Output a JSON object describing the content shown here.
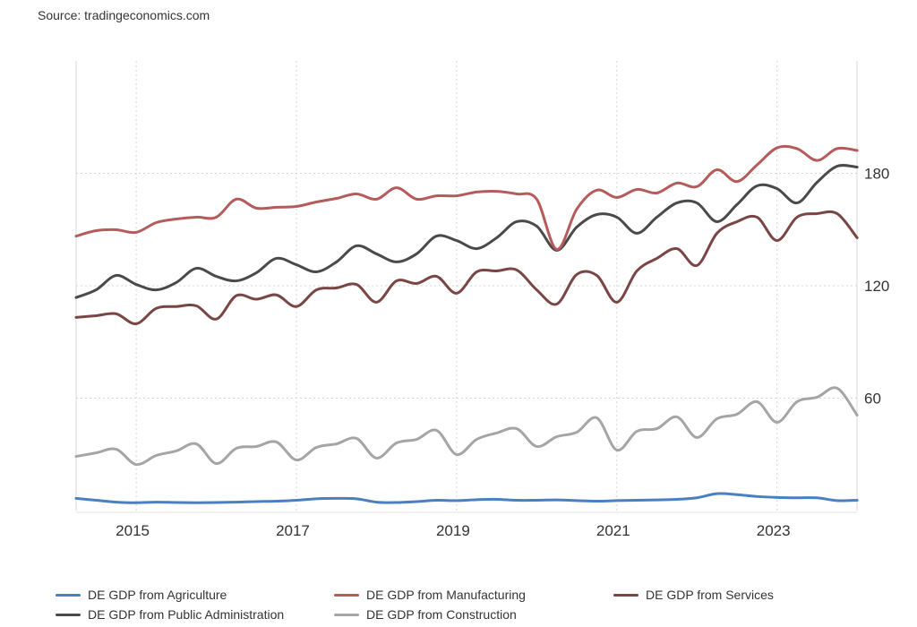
{
  "source": "Source: tradingeconomics.com",
  "chart_data": {
    "type": "line",
    "title": "",
    "xlabel": "",
    "ylabel": "",
    "ylim": [
      0,
      240
    ],
    "y_ticks": [
      "60",
      "120",
      "180"
    ],
    "y_tick_values": [
      60,
      120,
      180
    ],
    "y_axis_side": "right",
    "x_ticks": [
      "2015",
      "2017",
      "2019",
      "2021",
      "2023"
    ],
    "grid": true,
    "legend_position": "bottom",
    "x": [
      "2014-04",
      "2014-07",
      "2014-10",
      "2015-01",
      "2015-04",
      "2015-07",
      "2015-10",
      "2016-01",
      "2016-04",
      "2016-07",
      "2016-10",
      "2017-01",
      "2017-04",
      "2017-07",
      "2017-10",
      "2018-01",
      "2018-04",
      "2018-07",
      "2018-10",
      "2019-01",
      "2019-04",
      "2019-07",
      "2019-10",
      "2020-01",
      "2020-04",
      "2020-07",
      "2020-10",
      "2021-01",
      "2021-04",
      "2021-07",
      "2021-10",
      "2022-01",
      "2022-04",
      "2022-07",
      "2022-10",
      "2023-01",
      "2023-04",
      "2023-07",
      "2023-10",
      "2024-01"
    ],
    "series": [
      {
        "name": "DE GDP from Agriculture",
        "color": "#4a7fc1",
        "values": [
          6.5,
          5.5,
          4.5,
          4.2,
          4.5,
          4.3,
          4.2,
          4.3,
          4.5,
          4.8,
          5.0,
          5.5,
          6.3,
          6.5,
          6.3,
          4.5,
          4.3,
          4.8,
          5.5,
          5.3,
          5.8,
          6.0,
          5.5,
          5.5,
          5.7,
          5.3,
          5.0,
          5.3,
          5.5,
          5.7,
          6.0,
          6.8,
          9.0,
          8.5,
          7.5,
          7.0,
          6.8,
          6.8,
          5.3,
          5.5
        ]
      },
      {
        "name": "DE GDP from Construction",
        "color": "#a5a5a5",
        "values": [
          28.9,
          30.8,
          32.7,
          24.6,
          29.4,
          31.8,
          35.6,
          25.1,
          33.2,
          34.2,
          36.6,
          27.0,
          33.7,
          35.6,
          38.5,
          28.0,
          36.1,
          38.0,
          42.8,
          29.9,
          38.0,
          41.4,
          43.7,
          34.2,
          39.4,
          41.8,
          49.5,
          32.3,
          42.3,
          43.7,
          50.0,
          39.0,
          49.0,
          51.4,
          58.1,
          47.1,
          58.1,
          60.5,
          65.3,
          50.9
        ]
      },
      {
        "name": "DE GDP from Manufacturing",
        "color": "#b65b5b",
        "values": [
          146.5,
          149.4,
          149.9,
          148.5,
          153.7,
          155.6,
          156.6,
          156.6,
          166.2,
          161.4,
          161.9,
          162.3,
          164.7,
          166.6,
          169.0,
          166.2,
          172.3,
          166.2,
          168.0,
          168.0,
          170.0,
          170.4,
          169.0,
          166.2,
          139.4,
          160.9,
          171.0,
          167.1,
          171.4,
          169.5,
          174.8,
          172.9,
          181.9,
          175.6,
          184.5,
          193.6,
          193.2,
          186.9,
          193.2,
          192.2
        ]
      },
      {
        "name": "DE GDP from Public Administration",
        "color": "#4a4a4a",
        "values": [
          113.7,
          117.8,
          125.5,
          120.7,
          117.8,
          121.7,
          129.3,
          125.0,
          122.6,
          126.9,
          134.6,
          131.2,
          127.4,
          132.7,
          141.3,
          137.0,
          132.7,
          137.0,
          146.5,
          144.1,
          139.8,
          145.6,
          154.2,
          151.8,
          138.9,
          151.3,
          158.0,
          156.6,
          148.0,
          156.6,
          164.2,
          164.2,
          154.2,
          163.3,
          173.3,
          171.8,
          164.2,
          175.2,
          183.8,
          183.3
        ]
      },
      {
        "name": "DE GDP from Services",
        "color": "#7a4545",
        "values": [
          103.1,
          104.0,
          105.0,
          99.7,
          107.9,
          108.9,
          109.3,
          102.2,
          114.7,
          112.8,
          115.1,
          108.9,
          117.8,
          118.8,
          120.7,
          111.2,
          122.6,
          121.2,
          125.0,
          116.0,
          127.4,
          127.9,
          128.4,
          117.8,
          110.2,
          126.0,
          125.5,
          111.2,
          127.9,
          134.6,
          139.8,
          130.8,
          148.0,
          154.2,
          156.6,
          144.1,
          156.6,
          158.5,
          158.5,
          145.6
        ]
      }
    ]
  },
  "legend_order": [
    0,
    2,
    4,
    3,
    1
  ]
}
